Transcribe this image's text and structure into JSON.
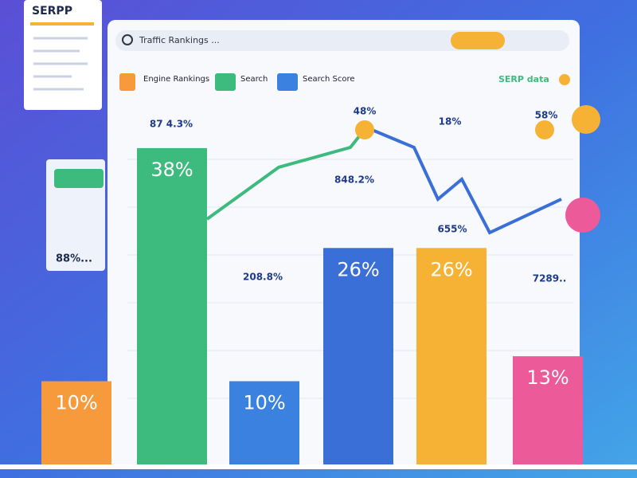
{
  "header": {
    "logo": "SERPP",
    "search": "Traffic Rankings ...",
    "badge": "SERP data",
    "legend": [
      "Engine Rankings",
      "Search",
      "Search Score"
    ],
    "side_card": "88%..."
  },
  "chart_data": {
    "type": "bar",
    "values": [
      10,
      38,
      10,
      26,
      26,
      13
    ],
    "value_labels": [
      "10%",
      "38%",
      "10%",
      "26%",
      "26%",
      "13%"
    ],
    "colors": [
      "#f79a3c",
      "#3dbb7e",
      "#3b82e0",
      "#3a6fd8",
      "#f5b234",
      "#ec5a9a"
    ],
    "ylim": [
      0,
      40
    ],
    "annotations": [
      "87 4.3%",
      "208.8%",
      "848.2%",
      "655%",
      "7289..",
      "48%",
      "18%",
      "58%"
    ]
  }
}
